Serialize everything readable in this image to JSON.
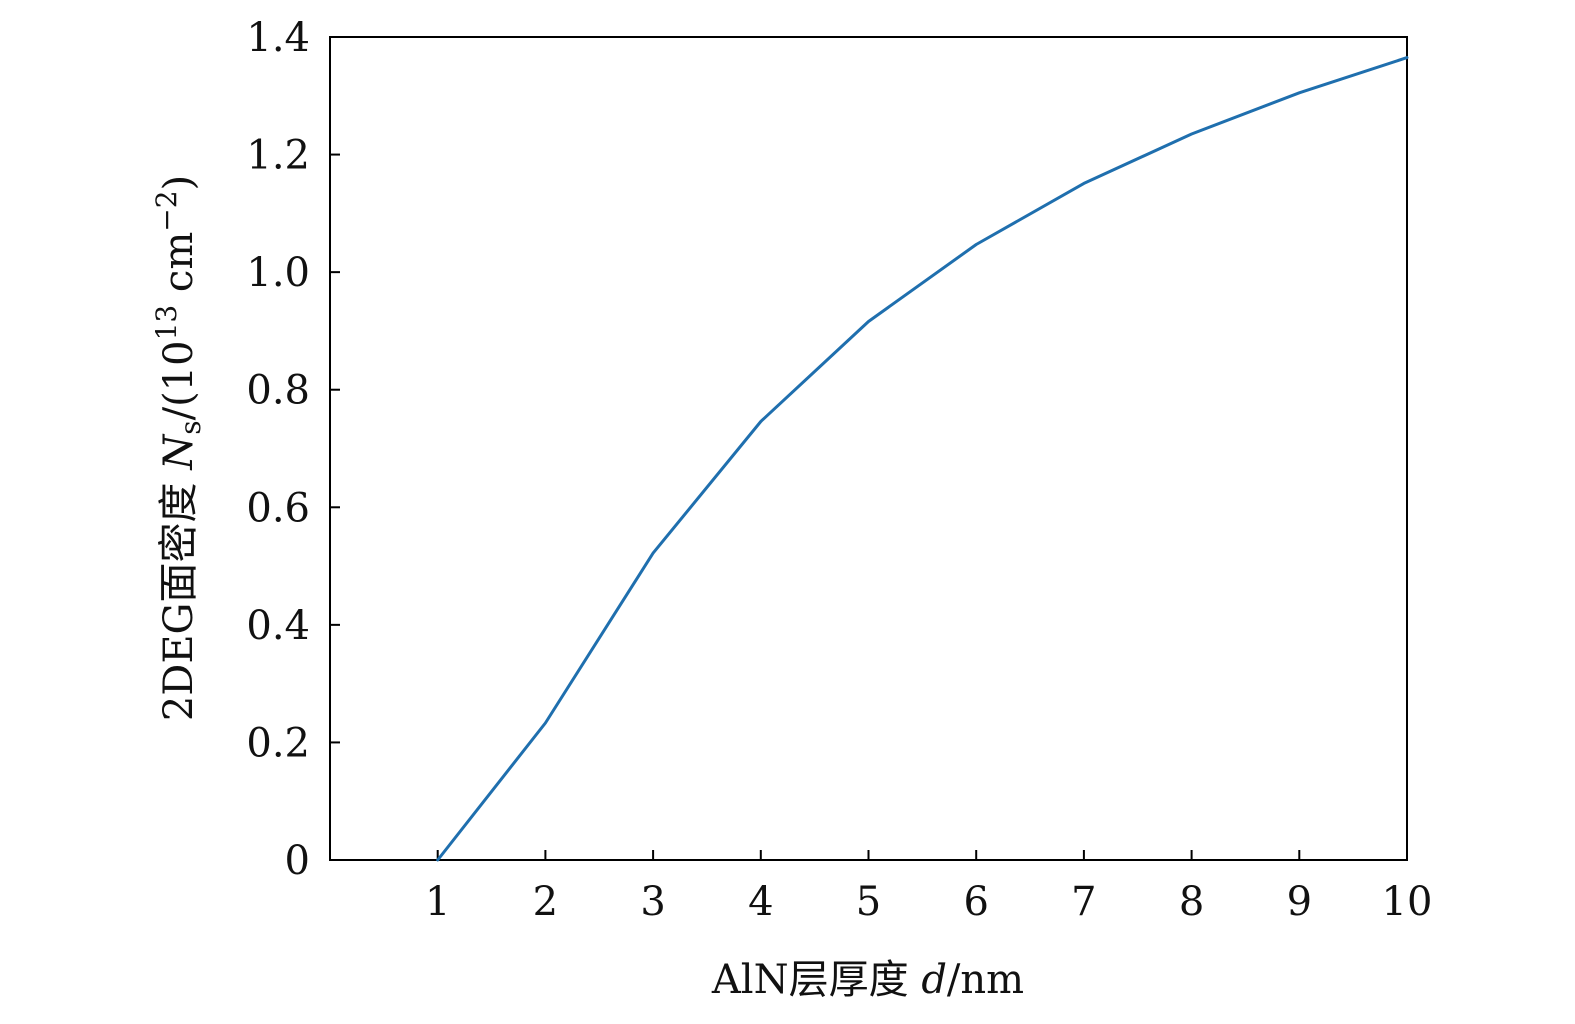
{
  "chart_data": {
    "type": "line",
    "title": "",
    "xlabel": {
      "prefix": "AlN层厚度 ",
      "symbol": "d",
      "suffix": "/nm"
    },
    "ylabel": {
      "prefix": "2DEG面密度 ",
      "symbol": "N",
      "subscript": "s",
      "mid": "/(10",
      "superscript": "13",
      "unit": " cm",
      "unit_superscript": "−2",
      "close": ")"
    },
    "xlim": [
      0,
      10
    ],
    "ylim": [
      0,
      1.4
    ],
    "x_ticks": [
      1,
      2,
      3,
      4,
      5,
      6,
      7,
      8,
      9,
      10
    ],
    "x_tick_labels": [
      "1",
      "2",
      "3",
      "4",
      "5",
      "6",
      "7",
      "8",
      "9",
      "10"
    ],
    "y_ticks": [
      0,
      0.2,
      0.4,
      0.6,
      0.8,
      1.0,
      1.2,
      1.4
    ],
    "y_tick_labels": [
      "0",
      "0.2",
      "0.4",
      "0.6",
      "0.8",
      "1.0",
      "1.2",
      "1.4"
    ],
    "grid": false,
    "series": [
      {
        "x": [
          1,
          2,
          3,
          4,
          5,
          6,
          7,
          8,
          9,
          10
        ],
        "y": [
          0,
          0.233,
          0.522,
          0.746,
          0.916,
          1.047,
          1.151,
          1.235,
          1.305,
          1.365
        ],
        "color": "#1f6fae"
      }
    ]
  }
}
